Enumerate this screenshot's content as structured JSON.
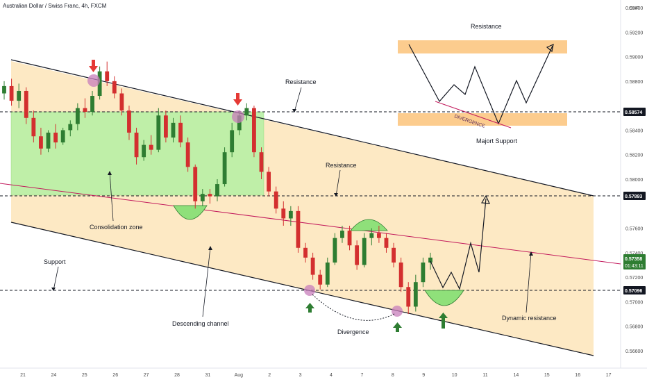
{
  "header": {
    "symbol": "Australian Dollar / Swiss Franc, 4h, FXCM"
  },
  "chart_data": {
    "type": "candlestick",
    "currency": "CHF",
    "y_ticks": [
      "0.59400",
      "0.59200",
      "0.59000",
      "0.58800",
      "0.58400",
      "0.58200",
      "0.58000",
      "0.57600",
      "0.57400",
      "0.57200",
      "0.57000",
      "0.56800",
      "0.56600"
    ],
    "y_tick_values": [
      0.594,
      0.592,
      0.59,
      0.588,
      0.584,
      0.582,
      0.58,
      0.576,
      0.574,
      0.572,
      0.57,
      0.568,
      0.566
    ],
    "x_ticks": [
      "21",
      "24",
      "25",
      "26",
      "27",
      "28",
      "31",
      "Aug",
      "2",
      "3",
      "4",
      "7",
      "8",
      "9",
      "10",
      "11",
      "14",
      "15",
      "16",
      "17"
    ],
    "price_tags": [
      {
        "label": "0.58574",
        "value": 0.58574,
        "style": "black"
      },
      {
        "label": "0.57893",
        "value": 0.57893,
        "style": "black"
      },
      {
        "label": "0.57358",
        "sub": "01:43:11",
        "value": 0.57358,
        "style": "green"
      },
      {
        "label": "0.57096",
        "value": 0.57096,
        "style": "black"
      }
    ],
    "annotations": {
      "resistance_top": "Resistance",
      "resistance_upper": "Resistance",
      "resistance_mid": "Resistance",
      "consolidation": "Consolidation zone",
      "support": "Support",
      "descending": "Descending channel",
      "divergence": "Divergence",
      "dynamic": "Dynamic resistance",
      "major_support": "Majort Support",
      "divergence_inset": "DIVERGENCE"
    },
    "colors": {
      "bull": "#2e7d32",
      "bear": "#d32f2f",
      "channel_fill": "#fde9c4",
      "consolidation_fill": "#b9f0a6",
      "zone_orange": "#fbc37a",
      "dynamic_line": "#c2185b",
      "arrow_red": "#e53935",
      "arrow_green": "#2e7d32",
      "marker_purple": "#c77dbb"
    },
    "candles": [
      [
        0.587,
        0.588,
        0.5865,
        0.5876
      ],
      [
        0.5876,
        0.5882,
        0.586,
        0.5864
      ],
      [
        0.5864,
        0.5878,
        0.5858,
        0.5872
      ],
      [
        0.5872,
        0.5875,
        0.5845,
        0.585
      ],
      [
        0.585,
        0.5856,
        0.583,
        0.5835
      ],
      [
        0.5835,
        0.5842,
        0.582,
        0.5825
      ],
      [
        0.5825,
        0.584,
        0.5822,
        0.5838
      ],
      [
        0.5838,
        0.5845,
        0.5825,
        0.583
      ],
      [
        0.583,
        0.5842,
        0.5828,
        0.584
      ],
      [
        0.584,
        0.5848,
        0.5835,
        0.5845
      ],
      [
        0.5845,
        0.5862,
        0.584,
        0.5858
      ],
      [
        0.5858,
        0.5866,
        0.585,
        0.5855
      ],
      [
        0.5855,
        0.5872,
        0.5852,
        0.5868
      ],
      [
        0.5868,
        0.5892,
        0.5865,
        0.5888
      ],
      [
        0.5888,
        0.5896,
        0.5876,
        0.588
      ],
      [
        0.588,
        0.5884,
        0.5866,
        0.587
      ],
      [
        0.587,
        0.5874,
        0.5852,
        0.5856
      ],
      [
        0.5856,
        0.586,
        0.5832,
        0.5838
      ],
      [
        0.5838,
        0.5842,
        0.5812,
        0.5818
      ],
      [
        0.5818,
        0.5832,
        0.5815,
        0.5828
      ],
      [
        0.5828,
        0.5836,
        0.582,
        0.5824
      ],
      [
        0.5824,
        0.5858,
        0.5822,
        0.5852
      ],
      [
        0.5852,
        0.5856,
        0.583,
        0.5834
      ],
      [
        0.5834,
        0.585,
        0.583,
        0.5846
      ],
      [
        0.5846,
        0.5852,
        0.5826,
        0.583
      ],
      [
        0.583,
        0.5834,
        0.5806,
        0.581
      ],
      [
        0.581,
        0.5812,
        0.5776,
        0.5782
      ],
      [
        0.5782,
        0.5792,
        0.5778,
        0.5788
      ],
      [
        0.5788,
        0.5792,
        0.578,
        0.5786
      ],
      [
        0.5786,
        0.58,
        0.5782,
        0.5796
      ],
      [
        0.5796,
        0.5826,
        0.5794,
        0.5822
      ],
      [
        0.5822,
        0.5846,
        0.5818,
        0.584
      ],
      [
        0.584,
        0.5856,
        0.5836,
        0.5852
      ],
      [
        0.5852,
        0.5862,
        0.5848,
        0.5858
      ],
      [
        0.5858,
        0.586,
        0.5818,
        0.5822
      ],
      [
        0.5822,
        0.5826,
        0.58,
        0.5806
      ],
      [
        0.5806,
        0.581,
        0.5786,
        0.579
      ],
      [
        0.579,
        0.5794,
        0.5772,
        0.5776
      ],
      [
        0.5776,
        0.5782,
        0.5762,
        0.5768
      ],
      [
        0.5768,
        0.5778,
        0.5762,
        0.5774
      ],
      [
        0.5774,
        0.5778,
        0.574,
        0.5744
      ],
      [
        0.5744,
        0.5748,
        0.5732,
        0.5736
      ],
      [
        0.5736,
        0.574,
        0.5718,
        0.5722
      ],
      [
        0.5722,
        0.5726,
        0.571,
        0.5714
      ],
      [
        0.5714,
        0.5736,
        0.5712,
        0.5732
      ],
      [
        0.5732,
        0.5756,
        0.573,
        0.5752
      ],
      [
        0.5752,
        0.5762,
        0.5748,
        0.5758
      ],
      [
        0.5758,
        0.5762,
        0.5742,
        0.5746
      ],
      [
        0.5746,
        0.575,
        0.5726,
        0.573
      ],
      [
        0.573,
        0.5756,
        0.5728,
        0.5752
      ],
      [
        0.5752,
        0.576,
        0.5746,
        0.5756
      ],
      [
        0.5756,
        0.5762,
        0.5748,
        0.5752
      ],
      [
        0.5752,
        0.5756,
        0.574,
        0.5744
      ],
      [
        0.5744,
        0.5748,
        0.5728,
        0.5732
      ],
      [
        0.5732,
        0.5736,
        0.5708,
        0.5712
      ],
      [
        0.5712,
        0.5716,
        0.569,
        0.5696
      ],
      [
        0.5696,
        0.5722,
        0.5692,
        0.5716
      ],
      [
        0.5716,
        0.5736,
        0.5712,
        0.5732
      ],
      [
        0.5732,
        0.574,
        0.5726,
        0.5736
      ]
    ]
  }
}
